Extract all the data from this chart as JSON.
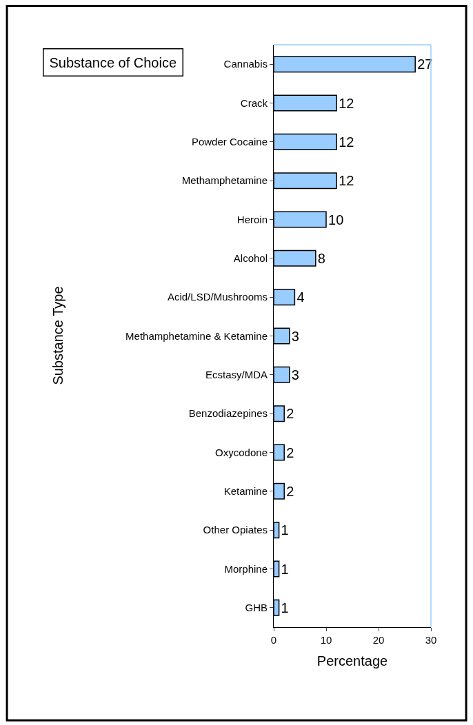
{
  "chart_data": {
    "type": "bar",
    "orientation": "horizontal",
    "title": "Substance of Choice",
    "xlabel": "Percentage",
    "ylabel": "Substance Type",
    "categories": [
      "Cannabis",
      "Crack",
      "Powder Cocaine",
      "Methamphetamine",
      "Heroin",
      "Alcohol",
      "Acid/LSD/Mushrooms",
      "Methamphetamine & Ketamine",
      "Ecstasy/MDA",
      "Benzodiazepines",
      "Oxycodone",
      "Ketamine",
      "Other Opiates",
      "Morphine",
      "GHB"
    ],
    "values": [
      27,
      12,
      12,
      12,
      10,
      8,
      4,
      3,
      3,
      2,
      2,
      2,
      1,
      1,
      1
    ],
    "color": "#99ccff",
    "xlim": [
      0,
      30
    ],
    "xticks": [
      0,
      10,
      20,
      30
    ],
    "data_labels": true
  }
}
